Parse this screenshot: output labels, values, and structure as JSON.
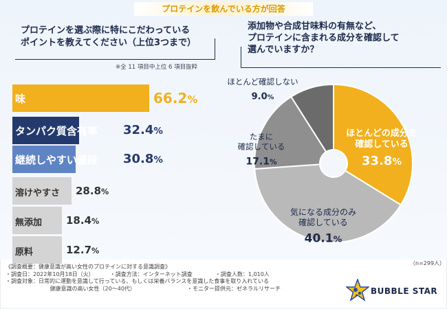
{
  "banner": "プロテインを飲んでいる方が回答",
  "left": {
    "question_line1": "プロテインを選ぶ際に特にこだわっている",
    "question_line2": "ポイントを教えてください（上位3つまで）",
    "note": "※全 11 項目中上位 6 項目抜粋"
  },
  "right": {
    "question_line1": "添加物や合成甘味料の有無など、",
    "question_line2": "プロテインに含まれる成分を確認して",
    "question_line3": "選んでいますか？",
    "n_note": "（n=299人）"
  },
  "chart_data": [
    {
      "type": "bar",
      "orientation": "horizontal",
      "title": "プロテインを選ぶ際に特にこだわっているポイントを教えてください（上位3つまで）",
      "unit": "%",
      "categories": [
        "味",
        "タンパク質含有率",
        "継続しやすい値段",
        "溶けやすさ",
        "無添加",
        "原料"
      ],
      "values": [
        66.2,
        32.4,
        30.8,
        28.8,
        18.4,
        12.7
      ],
      "display": [
        {
          "num": "66.2",
          "pct": "%"
        },
        {
          "num": "32.4",
          "pct": "%"
        },
        {
          "num": "30.8",
          "pct": "%"
        },
        {
          "num": "28.8",
          "pct": "%"
        },
        {
          "num": "18.4",
          "pct": "%"
        },
        {
          "num": "12.7",
          "pct": "%"
        }
      ],
      "colors": [
        "#f2b01e",
        "#243a6e",
        "#5f84c4",
        "#d4d4d4",
        "#d4d4d4",
        "#d4d4d4"
      ],
      "label_colors": [
        "#ffffff",
        "#ffffff",
        "#ffffff",
        "#333333",
        "#333333",
        "#333333"
      ],
      "value_colors": [
        "#f2b01e",
        "#243a6e",
        "#243a6e",
        "#333333",
        "#333333",
        "#333333"
      ]
    },
    {
      "type": "pie",
      "subtype": "donut",
      "title": "添加物や合成甘味料の有無など、プロテインに含まれる成分を確認して選んでいますか？",
      "unit": "%",
      "slices": [
        {
          "label_line1": "ほとんどの成分を",
          "label_line2": "確認している",
          "value": 33.8,
          "num": "33.8",
          "pct": "%",
          "color": "#f2b01e",
          "text_color": "#ffffff"
        },
        {
          "label_line1": "気になる成分のみ",
          "label_line2": "確認している",
          "value": 40.1,
          "num": "40.1",
          "pct": "%",
          "color": "#b9b9b9",
          "text_color": "#1c2a4a"
        },
        {
          "label_line1": "たまに",
          "label_line2": "確認している",
          "value": 17.1,
          "num": "17.1",
          "pct": "%",
          "color": "#8f8f8f",
          "text_color": "#1c2a4a"
        },
        {
          "label_line1": "ほとんど確認しない",
          "label_line2": "",
          "value": 9.0,
          "num": "9.0",
          "pct": "%",
          "color": "#6b6b6b",
          "text_color": "#1c2a4a"
        }
      ]
    }
  ],
  "footer": {
    "title": "《調査概要：健康意識が高い女性のプロテインに対する意識調査》",
    "date": "・調査日：2022年10月18日（火）",
    "method": "・調査方法：インターネット調査",
    "count": "・調査人数：1,010人",
    "target": "・調査対象：日常的に運動を意識して行っている、もしくは栄養バランスを意識した食事を取り入れている",
    "target2": "健康意識の高い女性（20～40代）",
    "monitor": "・モニター提供元：ゼネラルリサーチ"
  },
  "brand": {
    "name": "BUBBLE STAR",
    "logo": "star-logo-icon"
  }
}
